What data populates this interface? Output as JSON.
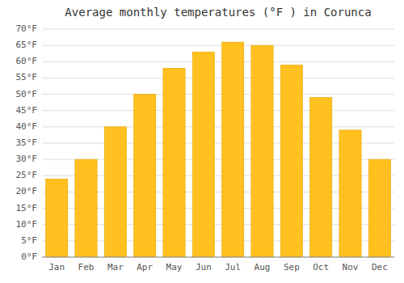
{
  "chart_data": {
    "type": "bar",
    "title": "Average monthly temperatures (°F ) in Corunca",
    "categories": [
      "Jan",
      "Feb",
      "Mar",
      "Apr",
      "May",
      "Jun",
      "Jul",
      "Aug",
      "Sep",
      "Oct",
      "Nov",
      "Dec"
    ],
    "values": [
      24,
      30,
      40,
      50,
      58,
      63,
      66,
      65,
      59,
      49,
      39,
      30
    ],
    "color": "#FFC020",
    "ylim": [
      0,
      70
    ],
    "yticks": [
      {
        "value": 0,
        "label": "0°F"
      },
      {
        "value": 5,
        "label": "5°F"
      },
      {
        "value": 10,
        "label": "10°F"
      },
      {
        "value": 15,
        "label": "15°F"
      },
      {
        "value": 20,
        "label": "20°F"
      },
      {
        "value": 25,
        "label": "25°F"
      },
      {
        "value": 30,
        "label": "30°F"
      },
      {
        "value": 35,
        "label": "35°F"
      },
      {
        "value": 40,
        "label": "40°F"
      },
      {
        "value": 45,
        "label": "45°F"
      },
      {
        "value": 50,
        "label": "50°F"
      },
      {
        "value": 55,
        "label": "55°F"
      },
      {
        "value": 60,
        "label": "60°F"
      },
      {
        "value": 65,
        "label": "65°F"
      },
      {
        "value": 70,
        "label": "70°F"
      }
    ],
    "grid": true
  }
}
